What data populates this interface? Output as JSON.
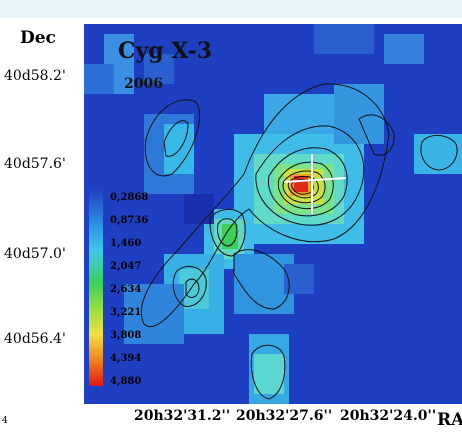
{
  "axes": {
    "dec_label": "Dec",
    "ra_label": "RA",
    "dec_ticks": [
      "40d58.2'",
      "40d57.6'",
      "40d57.0'",
      "40d56.4'"
    ],
    "ra_ticks": [
      "20h32'31.2''",
      "20h32'27.6''",
      "20h32'24.0''"
    ]
  },
  "map": {
    "title": "Cyg X-3",
    "year": "2006"
  },
  "colorbar": {
    "values": [
      "0,2868",
      "0,8736",
      "1,460",
      "2,047",
      "2,634",
      "3,221",
      "3,808",
      "4,394",
      "4,880"
    ]
  },
  "page_number": "4",
  "colors": {
    "background_blue": "#1f3fc2",
    "low": "#36b4e8",
    "mid": "#5fd8c8",
    "green": "#3ccf5a",
    "peak": "#e02a1a"
  }
}
